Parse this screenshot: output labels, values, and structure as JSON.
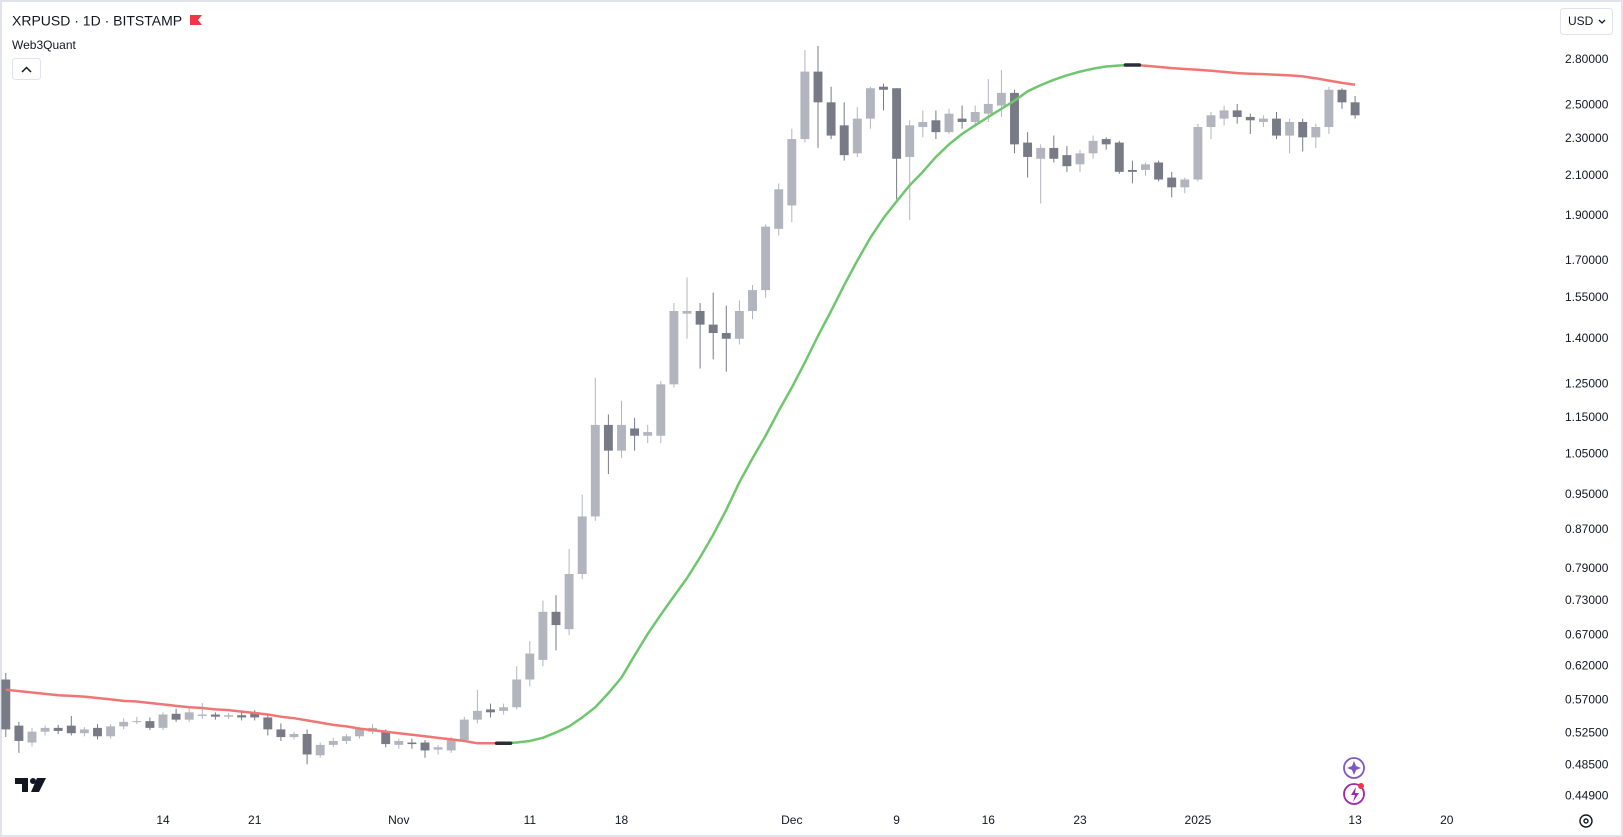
{
  "chart_data": {
    "type": "candlestick",
    "title": "XRPUSD · 1D · BITSTAMP",
    "currency": "USD",
    "categories": [
      null,
      null,
      null,
      null,
      null,
      null,
      null,
      null,
      null,
      null,
      null,
      null,
      "14",
      null,
      null,
      null,
      null,
      null,
      null,
      "21",
      null,
      null,
      null,
      null,
      null,
      null,
      null,
      null,
      null,
      null,
      "Nov",
      null,
      null,
      null,
      null,
      null,
      null,
      null,
      null,
      null,
      "11",
      null,
      null,
      null,
      null,
      null,
      null,
      "18",
      null,
      null,
      null,
      null,
      null,
      null,
      null,
      null,
      null,
      null,
      null,
      null,
      "Dec",
      null,
      null,
      null,
      null,
      null,
      null,
      null,
      "9",
      null,
      null,
      null,
      null,
      null,
      null,
      "16",
      null,
      null,
      null,
      null,
      null,
      null,
      "23",
      null,
      null,
      null,
      null,
      null,
      null,
      null,
      null,
      "2025",
      null,
      null,
      null,
      null,
      null,
      null,
      null,
      null,
      null,
      null,
      null,
      "13",
      null,
      null,
      null,
      null,
      null,
      null,
      "20"
    ],
    "open": [
      0.6,
      0.535,
      0.513,
      0.527,
      0.532,
      0.535,
      0.525,
      0.532,
      0.521,
      0.534,
      0.54,
      0.541,
      0.532,
      0.551,
      0.543,
      0.548,
      0.55,
      0.547,
      0.549,
      0.553,
      0.546,
      0.53,
      0.52,
      0.524,
      0.497,
      0.51,
      0.515,
      0.521,
      0.527,
      0.527,
      0.51,
      0.513,
      0.513,
      0.504,
      0.503,
      0.516,
      0.543,
      0.557,
      0.555,
      0.56,
      0.6,
      0.63,
      0.71,
      0.68,
      0.78,
      0.9,
      1.13,
      1.06,
      1.12,
      1.1,
      1.1,
      1.25,
      1.49,
      1.5,
      1.45,
      1.42,
      1.4,
      1.5,
      1.58,
      1.84,
      1.95,
      2.3,
      2.72,
      2.52,
      2.38,
      2.22,
      2.42,
      2.62,
      2.61,
      2.2,
      2.37,
      2.41,
      2.34,
      2.42,
      2.4,
      2.45,
      2.5,
      2.58,
      2.28,
      2.19,
      2.25,
      2.21,
      2.16,
      2.22,
      2.3,
      2.28,
      2.13,
      2.13,
      2.17,
      2.09,
      2.04,
      2.08,
      2.37,
      2.42,
      2.47,
      2.43,
      2.4,
      2.42,
      2.32,
      2.4,
      2.31,
      2.37,
      2.6,
      2.52,
      null,
      null,
      null,
      null,
      null,
      null,
      null
    ],
    "high": [
      0.61,
      0.54,
      0.532,
      0.535,
      0.536,
      0.548,
      0.533,
      0.537,
      0.537,
      0.545,
      0.547,
      0.546,
      0.553,
      0.558,
      0.558,
      0.566,
      0.553,
      0.552,
      0.553,
      0.556,
      0.55,
      0.538,
      0.527,
      0.53,
      0.513,
      0.519,
      0.524,
      0.533,
      0.537,
      0.53,
      0.518,
      0.518,
      0.516,
      0.51,
      0.52,
      0.547,
      0.585,
      0.565,
      0.565,
      0.62,
      0.66,
      0.73,
      0.74,
      0.83,
      0.95,
      1.27,
      1.16,
      1.2,
      1.15,
      1.13,
      1.26,
      1.53,
      1.63,
      1.53,
      1.57,
      1.52,
      1.54,
      1.6,
      1.86,
      2.06,
      2.36,
      2.87,
      2.9,
      2.62,
      2.52,
      2.49,
      2.62,
      2.64,
      2.61,
      2.41,
      2.47,
      2.47,
      2.48,
      2.5,
      2.5,
      2.67,
      2.73,
      2.6,
      2.34,
      2.27,
      2.32,
      2.26,
      2.24,
      2.32,
      2.31,
      2.29,
      2.18,
      2.17,
      2.18,
      2.12,
      2.09,
      2.39,
      2.46,
      2.5,
      2.51,
      2.45,
      2.44,
      2.46,
      2.42,
      2.42,
      2.39,
      2.62,
      2.61,
      2.56,
      null,
      null,
      null,
      null,
      null,
      null,
      null
    ],
    "low": [
      0.52,
      0.5,
      0.508,
      0.522,
      0.524,
      0.522,
      0.521,
      0.517,
      0.518,
      0.53,
      0.537,
      0.529,
      0.529,
      0.54,
      0.54,
      0.544,
      0.543,
      0.544,
      0.542,
      0.542,
      0.522,
      0.515,
      0.517,
      0.486,
      0.494,
      0.507,
      0.511,
      0.518,
      0.524,
      0.507,
      0.505,
      0.505,
      0.494,
      0.498,
      0.5,
      0.513,
      0.538,
      0.546,
      0.55,
      0.557,
      0.59,
      0.62,
      0.645,
      0.67,
      0.77,
      0.89,
      1.0,
      1.04,
      1.06,
      1.08,
      1.08,
      1.24,
      1.4,
      1.3,
      1.33,
      1.29,
      1.38,
      1.47,
      1.55,
      1.81,
      1.87,
      2.28,
      2.25,
      2.3,
      2.18,
      2.2,
      2.36,
      2.47,
      1.98,
      1.88,
      2.31,
      2.3,
      2.33,
      2.36,
      2.38,
      2.4,
      2.43,
      2.22,
      2.09,
      1.96,
      2.17,
      2.12,
      2.12,
      2.19,
      2.24,
      2.11,
      2.06,
      2.1,
      2.07,
      1.99,
      2.01,
      2.07,
      2.3,
      2.38,
      2.39,
      2.33,
      2.37,
      2.3,
      2.22,
      2.23,
      2.25,
      2.33,
      2.48,
      2.42,
      null,
      null,
      null,
      null,
      null,
      null,
      null
    ],
    "close": [
      0.53,
      0.515,
      0.527,
      0.532,
      0.528,
      0.525,
      0.53,
      0.521,
      0.534,
      0.54,
      0.541,
      0.532,
      0.55,
      0.543,
      0.553,
      0.55,
      0.547,
      0.549,
      0.546,
      0.546,
      0.53,
      0.52,
      0.524,
      0.498,
      0.51,
      0.515,
      0.521,
      0.53,
      0.532,
      0.511,
      0.515,
      0.511,
      0.503,
      0.507,
      0.516,
      0.543,
      0.555,
      0.553,
      0.56,
      0.6,
      0.64,
      0.71,
      0.687,
      0.78,
      0.9,
      1.13,
      1.06,
      1.13,
      1.1,
      1.11,
      1.25,
      1.5,
      1.5,
      1.45,
      1.42,
      1.4,
      1.5,
      1.58,
      1.85,
      2.03,
      2.3,
      2.72,
      2.52,
      2.32,
      2.21,
      2.42,
      2.61,
      2.6,
      2.19,
      2.38,
      2.4,
      2.34,
      2.45,
      2.4,
      2.46,
      2.51,
      2.58,
      2.27,
      2.2,
      2.25,
      2.19,
      2.15,
      2.22,
      2.29,
      2.27,
      2.12,
      2.12,
      2.16,
      2.08,
      2.04,
      2.08,
      2.37,
      2.44,
      2.47,
      2.43,
      2.41,
      2.42,
      2.32,
      2.4,
      2.31,
      2.37,
      2.6,
      2.52,
      2.44,
      null,
      null,
      null,
      null,
      null,
      null,
      null
    ],
    "up_color": "#b2b5be",
    "down_color": "#787b86",
    "overlay": {
      "name": "Web3Quant",
      "rising_color": "#6fc66f",
      "falling_color": "#f07676",
      "marker_color": "#2a2e39",
      "values": [
        0.585,
        0.583,
        0.581,
        0.579,
        0.577,
        0.576,
        0.575,
        0.573,
        0.571,
        0.569,
        0.568,
        0.566,
        0.564,
        0.562,
        0.56,
        0.559,
        0.557,
        0.556,
        0.554,
        0.552,
        0.55,
        0.547,
        0.545,
        0.542,
        0.539,
        0.536,
        0.534,
        0.531,
        0.529,
        0.527,
        0.525,
        0.523,
        0.521,
        0.519,
        0.517,
        0.515,
        0.512,
        0.512,
        0.512,
        0.513,
        0.515,
        0.519,
        0.526,
        0.534,
        0.546,
        0.56,
        0.58,
        0.603,
        0.637,
        0.672,
        0.705,
        0.738,
        0.772,
        0.813,
        0.86,
        0.915,
        0.98,
        1.04,
        1.1,
        1.17,
        1.24,
        1.32,
        1.41,
        1.5,
        1.6,
        1.7,
        1.8,
        1.89,
        1.97,
        2.05,
        2.12,
        2.2,
        2.27,
        2.33,
        2.38,
        2.43,
        2.48,
        2.53,
        2.59,
        2.63,
        2.665,
        2.695,
        2.72,
        2.74,
        2.755,
        2.762,
        2.765,
        2.76,
        2.752,
        2.744,
        2.738,
        2.733,
        2.726,
        2.718,
        2.71,
        2.706,
        2.703,
        2.699,
        2.695,
        2.688,
        2.675,
        2.66,
        2.645,
        2.633,
        null,
        null,
        null,
        null,
        null,
        null,
        null
      ]
    },
    "log_scale": true,
    "grid": false,
    "ylim": [
      0.437,
      3.21
    ],
    "yticks": [
      {
        "value": 2.8,
        "label": "2.80000"
      },
      {
        "value": 2.5,
        "label": "2.50000"
      },
      {
        "value": 2.3,
        "label": "2.30000"
      },
      {
        "value": 2.1,
        "label": "2.10000"
      },
      {
        "value": 1.9,
        "label": "1.90000"
      },
      {
        "value": 1.7,
        "label": "1.70000"
      },
      {
        "value": 1.55,
        "label": "1.55000"
      },
      {
        "value": 1.4,
        "label": "1.40000"
      },
      {
        "value": 1.25,
        "label": "1.25000"
      },
      {
        "value": 1.15,
        "label": "1.15000"
      },
      {
        "value": 1.05,
        "label": "1.05000"
      },
      {
        "value": 0.95,
        "label": "0.95000"
      },
      {
        "value": 0.87,
        "label": "0.87000"
      },
      {
        "value": 0.79,
        "label": "0.79000"
      },
      {
        "value": 0.73,
        "label": "0.73000"
      },
      {
        "value": 0.67,
        "label": "0.67000"
      },
      {
        "value": 0.62,
        "label": "0.62000"
      },
      {
        "value": 0.57,
        "label": "0.57000"
      },
      {
        "value": 0.525,
        "label": "0.52500"
      },
      {
        "value": 0.485,
        "label": "0.48500"
      },
      {
        "value": 0.449,
        "label": "0.44900"
      }
    ]
  }
}
